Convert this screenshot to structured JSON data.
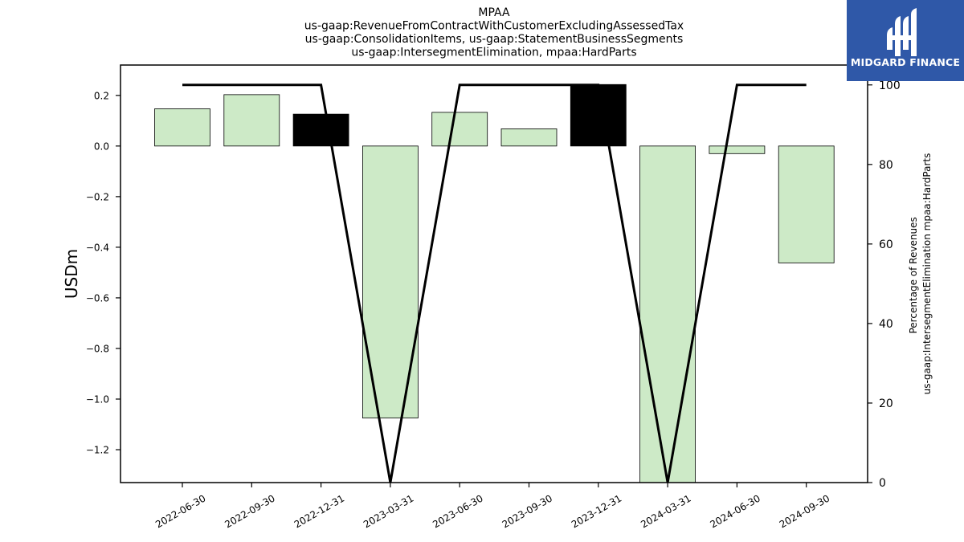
{
  "chart_data": {
    "type": "bar",
    "title_lines": [
      "MPAA",
      "us-gaap:RevenueFromContractWithCustomerExcludingAssessedTax",
      "us-gaap:ConsolidationItems, us-gaap:StatementBusinessSegments",
      "us-gaap:IntersegmentElimination, mpaa:HardParts"
    ],
    "ylabel": "USDm",
    "y2label_lines": [
      "Percentage of Revenues",
      "us-gaap:IntersegmentElimination mpaa:HardParts"
    ],
    "categories": [
      "2022-06-30",
      "2022-09-30",
      "2022-12-31",
      "2023-03-31",
      "2023-06-30",
      "2023-09-30",
      "2023-12-31",
      "2024-03-31",
      "2024-06-30",
      "2024-09-30"
    ],
    "series": [
      {
        "type": "bar",
        "axis": "left",
        "values": [
          0.147,
          0.203,
          0.126,
          -1.075,
          0.133,
          0.068,
          0.243,
          -1.33,
          -0.03,
          -0.462
        ],
        "colors": [
          "#cdeac7",
          "#cdeac7",
          "#000000",
          "#cdeac7",
          "#cdeac7",
          "#cdeac7",
          "#000000",
          "#cdeac7",
          "#cdeac7",
          "#cdeac7"
        ]
      },
      {
        "type": "line",
        "axis": "right",
        "values": [
          100,
          100,
          100,
          0,
          100,
          100,
          100,
          0,
          100,
          100
        ],
        "color": "#000000"
      }
    ],
    "ylim": [
      -1.33,
      0.32
    ],
    "yticks": [
      -1.2,
      -1.0,
      -0.8,
      -0.6,
      -0.4,
      -0.2,
      0.0,
      0.2
    ],
    "ytick_labels": [
      "−1.2",
      "−1.0",
      "−0.8",
      "−0.6",
      "−0.4",
      "−0.2",
      "0.0",
      "0.2"
    ],
    "y2lim": [
      0,
      105
    ],
    "y2ticks": [
      0,
      20,
      40,
      60,
      80,
      100
    ],
    "y2tick_labels": [
      "0",
      "20",
      "40",
      "60",
      "80",
      "100"
    ],
    "grid": false,
    "legend": "none"
  },
  "logo": {
    "text": "MIDGARD FINANCE",
    "icon": "midgard-logo-icon",
    "background": "#2f58a8"
  }
}
